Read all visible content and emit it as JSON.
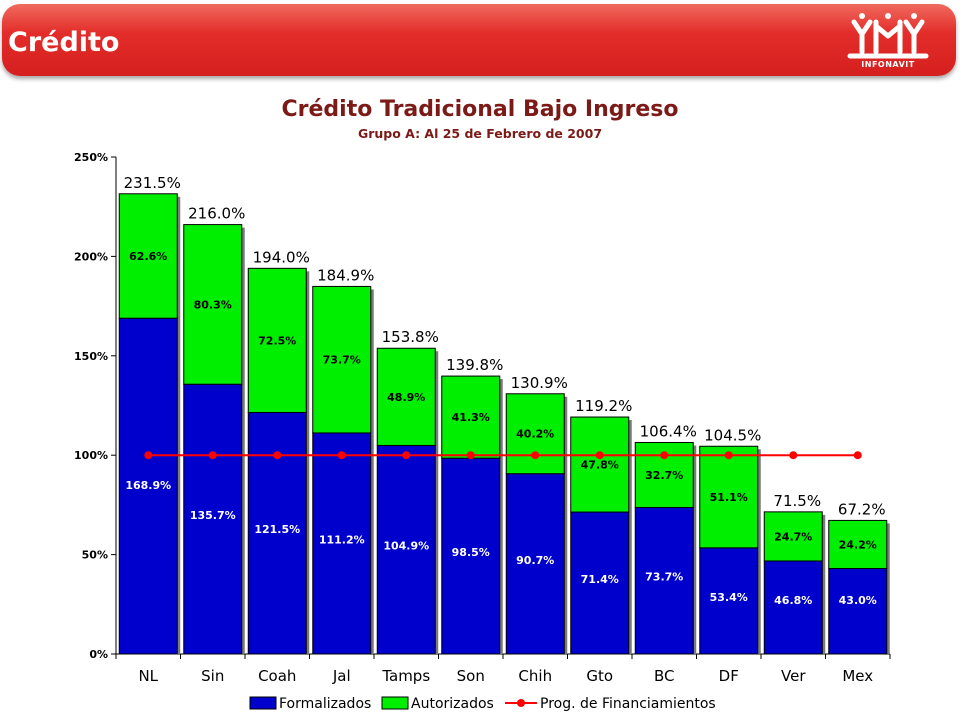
{
  "header": {
    "title": "Crédito",
    "logo_text": "INFONAVIT"
  },
  "chart_data": {
    "type": "bar",
    "stacked": true,
    "title": "Crédito Tradicional Bajo Ingreso",
    "subtitle": "Grupo A: Al 25 de Febrero de 2007",
    "xlabel": "",
    "ylabel": "",
    "categories": [
      "NL",
      "Sin",
      "Coah",
      "Jal",
      "Tamps",
      "Son",
      "Chih",
      "Gto",
      "BC",
      "DF",
      "Ver",
      "Mex"
    ],
    "ylim": [
      0,
      250
    ],
    "yticks": [
      0,
      50,
      100,
      150,
      200,
      250
    ],
    "ytick_labels": [
      "0%",
      "50%",
      "100%",
      "150%",
      "200%",
      "250%"
    ],
    "series": [
      {
        "name": "Formalizados",
        "color": "#0000cc",
        "values": [
          168.9,
          135.7,
          121.5,
          111.2,
          104.9,
          98.5,
          90.7,
          71.4,
          73.7,
          53.4,
          46.8,
          43.0
        ],
        "labels": [
          "168.9%",
          "135.7%",
          "121.5%",
          "111.2%",
          "104.9%",
          "98.5%",
          "90.7%",
          "71.4%",
          "73.7%",
          "53.4%",
          "46.8%",
          "43.0%"
        ]
      },
      {
        "name": "Autorizados",
        "color": "#00ee00",
        "values": [
          62.6,
          80.3,
          72.5,
          73.7,
          48.9,
          41.3,
          40.2,
          47.8,
          32.7,
          51.1,
          24.7,
          24.2
        ],
        "labels": [
          "62.6%",
          "80.3%",
          "72.5%",
          "73.7%",
          "48.9%",
          "41.3%",
          "40.2%",
          "47.8%",
          "32.7%",
          "51.1%",
          "24.7%",
          "24.2%"
        ]
      },
      {
        "name": "Prog. de Financiamientos",
        "type": "line",
        "color": "#ff0000",
        "values": [
          100,
          100,
          100,
          100,
          100,
          100,
          100,
          100,
          100,
          100,
          100,
          100
        ]
      }
    ],
    "totals": [
      231.5,
      216.0,
      194.0,
      184.9,
      153.8,
      139.8,
      130.9,
      119.2,
      106.4,
      104.5,
      71.5,
      67.2
    ],
    "total_labels": [
      "231.5%",
      "216.0%",
      "194.0%",
      "184.9%",
      "153.8%",
      "139.8%",
      "130.9%",
      "119.2%",
      "106.4%",
      "104.5%",
      "71.5%",
      "67.2%"
    ],
    "legend_position": "bottom",
    "grid": false
  }
}
